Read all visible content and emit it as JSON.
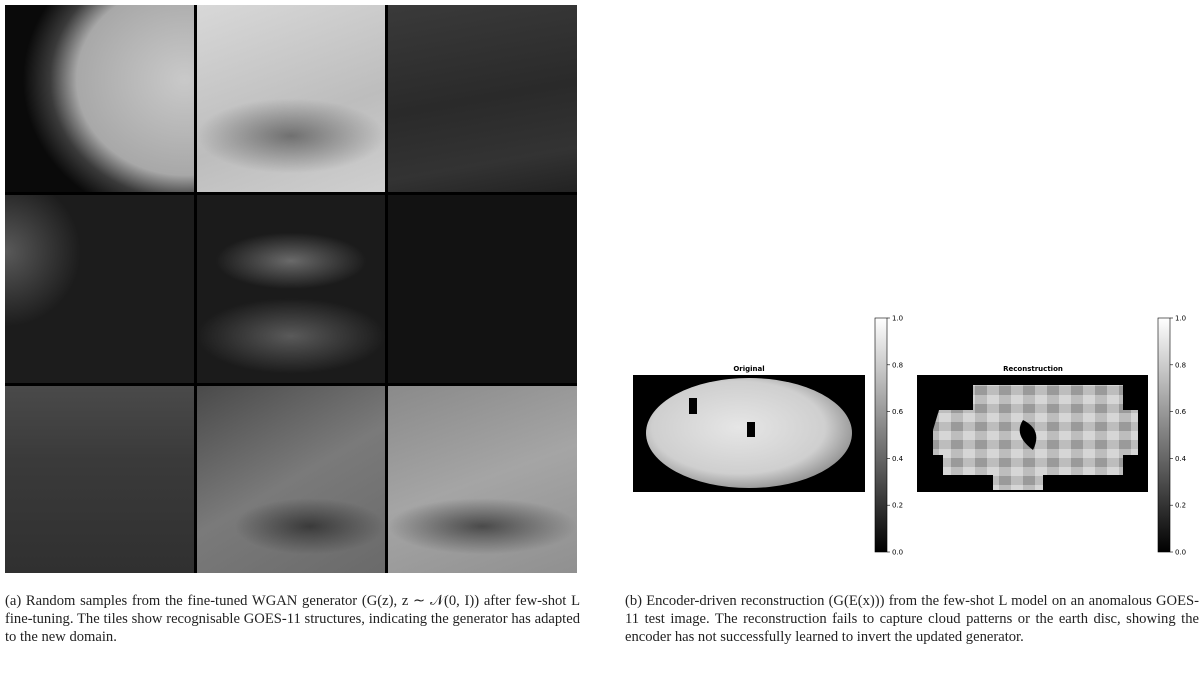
{
  "figure_a": {
    "caption": "(a) Random samples from the fine-tuned WGAN generator (G(z), z ∼ 𝒩(0, I)) after few-shot L fine-tuning. The tiles show recognisable GOES-11 structures, indicating the generator has adapted to the new domain."
  },
  "figure_b": {
    "caption": "(b) Encoder-driven reconstruction (G(E(x))) from the few-shot L model on an anomalous GOES-11 test image. The reconstruction fails to capture cloud patterns or the earth disc, showing the encoder has not successfully learned to invert the updated generator.",
    "panels": [
      {
        "title": "Original",
        "colorbar_lim": [
          0,
          1
        ],
        "colorbar_ticks": [
          {
            "value": 0,
            "label": "0.0"
          },
          {
            "value": 0.2,
            "label": "0.2"
          },
          {
            "value": 0.4,
            "label": "0.4"
          },
          {
            "value": 0.6,
            "label": "0.6"
          },
          {
            "value": 0.8,
            "label": "0.8"
          },
          {
            "value": 1,
            "label": "1.0"
          }
        ]
      },
      {
        "title": "Reconstruction",
        "colorbar_lim": [
          0,
          1
        ],
        "colorbar_ticks": [
          {
            "value": 0,
            "label": "0.0"
          },
          {
            "value": 0.2,
            "label": "0.2"
          },
          {
            "value": 0.4,
            "label": "0.4"
          },
          {
            "value": 0.6,
            "label": "0.6"
          },
          {
            "value": 0.8,
            "label": "0.8"
          },
          {
            "value": 1,
            "label": "1.0"
          }
        ]
      }
    ]
  }
}
